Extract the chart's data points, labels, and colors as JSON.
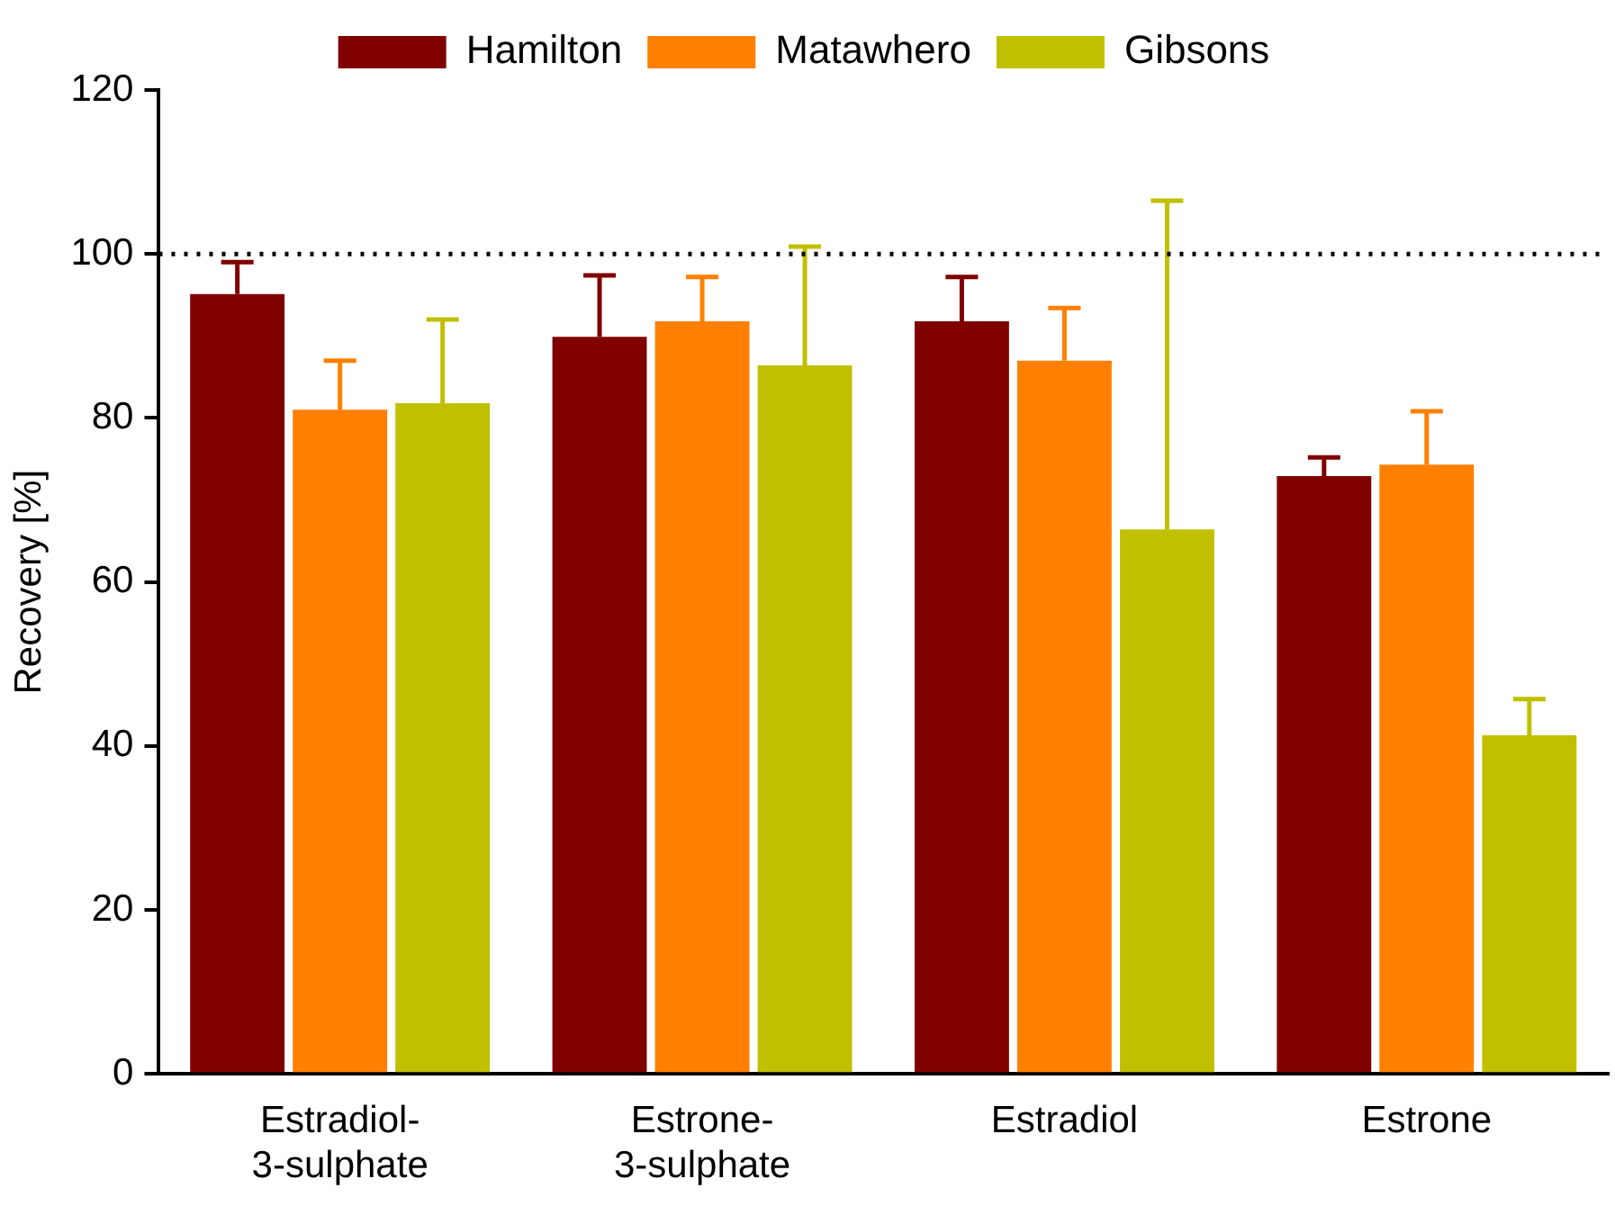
{
  "chart_data": {
    "type": "bar",
    "ylabel": "Recovery [%]",
    "categories": [
      "Estradiol-3-sulphate",
      "Estrone-3-sulphate",
      "Estradiol",
      "Estrone"
    ],
    "series": [
      {
        "name": "Hamilton",
        "color": "#800000",
        "values": [
          95.1,
          89.9,
          91.8,
          72.9
        ],
        "errors": [
          [
            95.1,
            99.0
          ],
          [
            89.9,
            97.4
          ],
          [
            91.8,
            97.2
          ],
          [
            72.9,
            75.2
          ]
        ]
      },
      {
        "name": "Matawhero",
        "color": "#ff8000",
        "values": [
          81.0,
          91.8,
          87.0,
          74.3
        ],
        "errors": [
          [
            81.0,
            87.0
          ],
          [
            91.8,
            97.2
          ],
          [
            87.0,
            93.4
          ],
          [
            74.3,
            80.8
          ]
        ]
      },
      {
        "name": "Gibsons",
        "color": "#c0c000",
        "values": [
          81.8,
          86.4,
          66.4,
          41.3
        ],
        "errors": [
          [
            81.8,
            92.0
          ],
          [
            86.4,
            100.9
          ],
          [
            66.4,
            106.5
          ],
          [
            41.3,
            45.7
          ]
        ]
      }
    ],
    "ylim": [
      0,
      120
    ],
    "yticks": [
      0,
      20,
      40,
      60,
      80,
      100,
      120
    ],
    "grid": false,
    "legend": "top",
    "ref_lines": [
      {
        "axis": "y",
        "value": 100,
        "color": "#000000",
        "line_style": "dotted"
      }
    ]
  }
}
